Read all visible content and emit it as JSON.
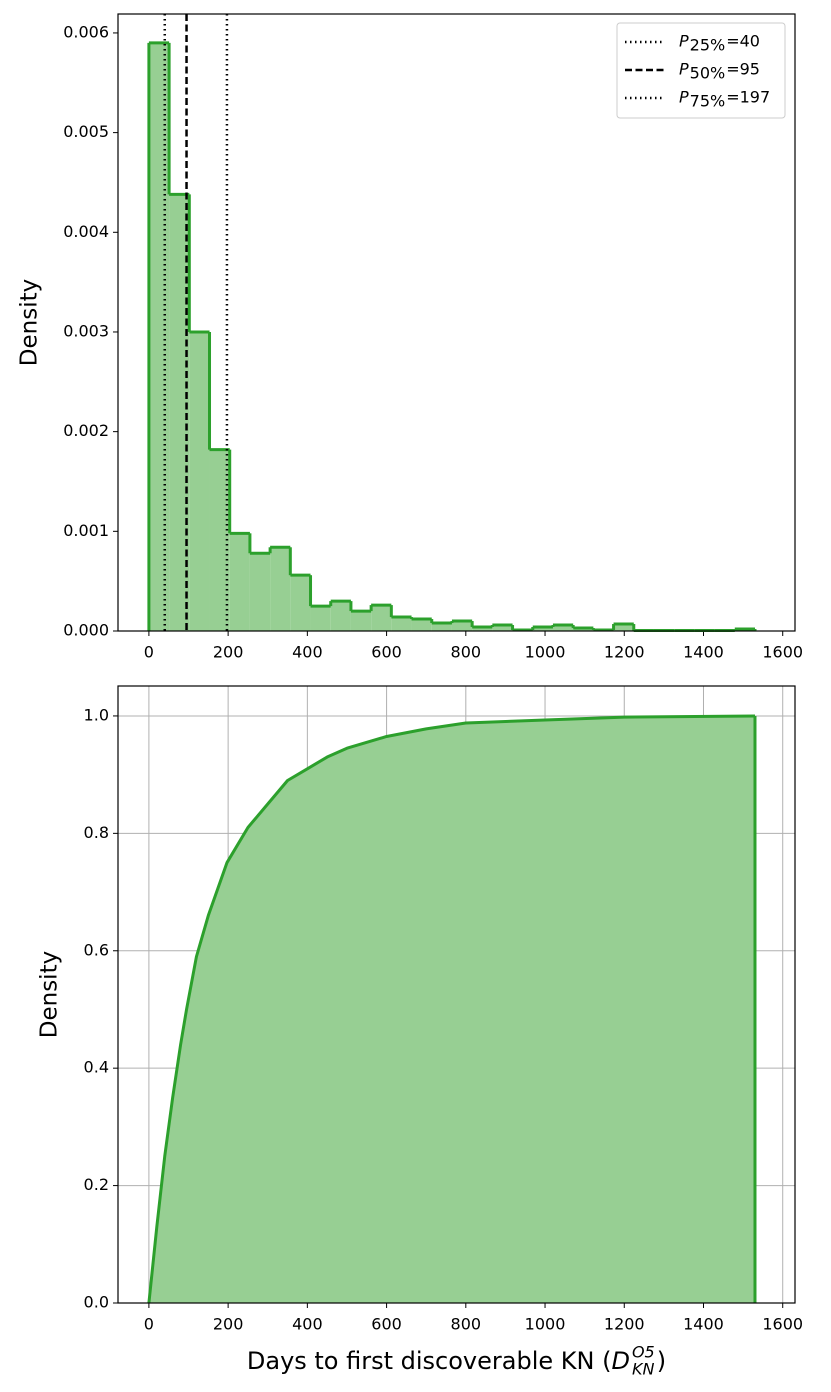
{
  "chart_data": [
    {
      "type": "histogram",
      "ylabel": "Density",
      "bins": [
        0,
        51,
        102,
        153,
        204,
        255,
        306,
        357,
        408,
        459,
        510,
        561,
        612,
        663,
        714,
        765,
        816,
        867,
        918,
        969,
        1020,
        1071,
        1122,
        1173,
        1224,
        1275,
        1326,
        1377,
        1428,
        1479,
        1530
      ],
      "counts": [
        0.0059,
        0.00438,
        0.003,
        0.00182,
        0.00098,
        0.00078,
        0.00084,
        0.00056,
        0.00025,
        0.0003,
        0.0002,
        0.00026,
        0.00014,
        0.00012,
        8e-05,
        0.0001,
        4e-05,
        6e-05,
        1e-05,
        4e-05,
        6e-05,
        3e-05,
        1e-05,
        7e-05,
        5e-06,
        5e-06,
        5e-06,
        5e-06,
        5e-06,
        2e-05
      ],
      "color": "#2ca02c",
      "fill": "#97cf93",
      "xlim": [
        -78,
        1631
      ],
      "ylim": [
        0,
        0.00619
      ],
      "xticks": [
        0,
        200,
        400,
        600,
        800,
        1000,
        1200,
        1400,
        1600
      ],
      "yticks": [
        {
          "value": 0,
          "label": "0.000"
        },
        {
          "value": 0.001,
          "label": "0.001"
        },
        {
          "value": 0.002,
          "label": "0.002"
        },
        {
          "value": 0.003,
          "label": "0.003"
        },
        {
          "value": 0.004,
          "label": "0.004"
        },
        {
          "value": 0.005,
          "label": "0.005"
        },
        {
          "value": 0.006,
          "label": "0.006"
        }
      ],
      "grid": false,
      "legend": "upper right",
      "vlines": [
        {
          "x": 40,
          "style": "dotted",
          "label_symbol": "P",
          "label_subscript": "25%",
          "label_tail": "=40"
        },
        {
          "x": 95,
          "style": "dashed",
          "label_symbol": "P",
          "label_subscript": "50%",
          "label_tail": "=95"
        },
        {
          "x": 197,
          "style": "dotted",
          "label_symbol": "P",
          "label_subscript": "75%",
          "label_tail": "=197"
        }
      ]
    },
    {
      "type": "area",
      "ylabel": "Density",
      "xlabel": {
        "text": "Days to first discoverable KN (",
        "symbol": "D",
        "superscript": "O5",
        "subscript": "KN",
        "close": ")"
      },
      "x": [
        0,
        20,
        40,
        60,
        80,
        95,
        120,
        150,
        197,
        250,
        300,
        350,
        400,
        450,
        500,
        600,
        700,
        800,
        1000,
        1200,
        1530
      ],
      "values": [
        0,
        0.13,
        0.25,
        0.35,
        0.44,
        0.5,
        0.59,
        0.66,
        0.75,
        0.81,
        0.85,
        0.89,
        0.91,
        0.93,
        0.945,
        0.965,
        0.978,
        0.988,
        0.993,
        0.998,
        1.0
      ],
      "color": "#2ca02c",
      "fill": "#97cf93",
      "xlim": [
        -78,
        1631
      ],
      "ylim": [
        0,
        1.051
      ],
      "xticks": [
        0,
        200,
        400,
        600,
        800,
        1000,
        1200,
        1400,
        1600
      ],
      "yticks": [
        {
          "value": 0,
          "label": "0.0"
        },
        0.2,
        0.4,
        0.6,
        0.8,
        {
          "value": 1,
          "label": "1.0"
        }
      ],
      "grid": true
    }
  ]
}
